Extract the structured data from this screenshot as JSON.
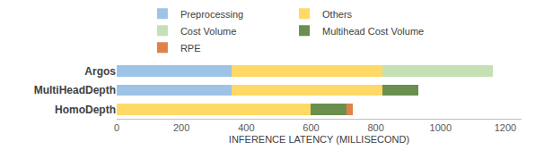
{
  "chart_data": {
    "type": "bar",
    "orientation": "horizontal",
    "stacked": true,
    "categories": [
      "Argos",
      "MultiHeadDepth",
      "HomoDepth"
    ],
    "series": [
      {
        "name": "Preprocessing",
        "color": "#9dc3e6",
        "values": [
          355,
          355,
          0
        ]
      },
      {
        "name": "Others",
        "color": "#ffd966",
        "values": [
          465,
          465,
          600
        ]
      },
      {
        "name": "Cost Volume",
        "color": "#c5e0b4",
        "values": [
          340,
          0,
          0
        ]
      },
      {
        "name": "Multihead Cost Volume",
        "color": "#6a8f4e",
        "values": [
          0,
          110,
          110
        ]
      },
      {
        "name": "RPE",
        "color": "#e2804a",
        "values": [
          0,
          0,
          20
        ]
      }
    ],
    "xlabel": "INFERENCE LATENCY (MILLISECOND)",
    "xlim": [
      0,
      1250
    ],
    "xticks": [
      0,
      200,
      400,
      600,
      800,
      1000,
      1200
    ],
    "grid": false,
    "legend": "top",
    "data_labels": false
  }
}
